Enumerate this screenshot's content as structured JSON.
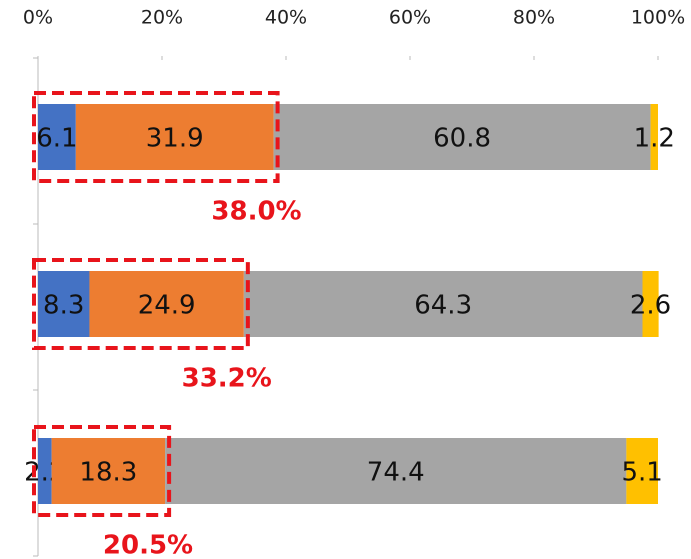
{
  "chart_data": {
    "type": "stacked-bar-horizontal",
    "categories": [
      null,
      null,
      null
    ],
    "series": [
      {
        "color": "#4472c4",
        "values": [
          6.1,
          8.3,
          2.2
        ]
      },
      {
        "color": "#ed7d31",
        "values": [
          31.9,
          24.9,
          18.3
        ]
      },
      {
        "color": "#a5a5a5",
        "values": [
          60.8,
          64.3,
          74.4
        ]
      },
      {
        "color": "#ffc000",
        "values": [
          1.2,
          2.6,
          5.1
        ]
      }
    ],
    "xlim": [
      0,
      100
    ],
    "xticks": [
      {
        "value": 0,
        "label": "0%"
      },
      {
        "value": 20,
        "label": "20%"
      },
      {
        "value": 40,
        "label": "40%"
      },
      {
        "value": 60,
        "label": "60%"
      },
      {
        "value": 80,
        "label": "80%"
      },
      {
        "value": 100,
        "label": "100%"
      }
    ],
    "annotations": [
      "38.0%",
      "33.2%",
      "20.5%"
    ],
    "highlight_color": "#e8141b"
  }
}
